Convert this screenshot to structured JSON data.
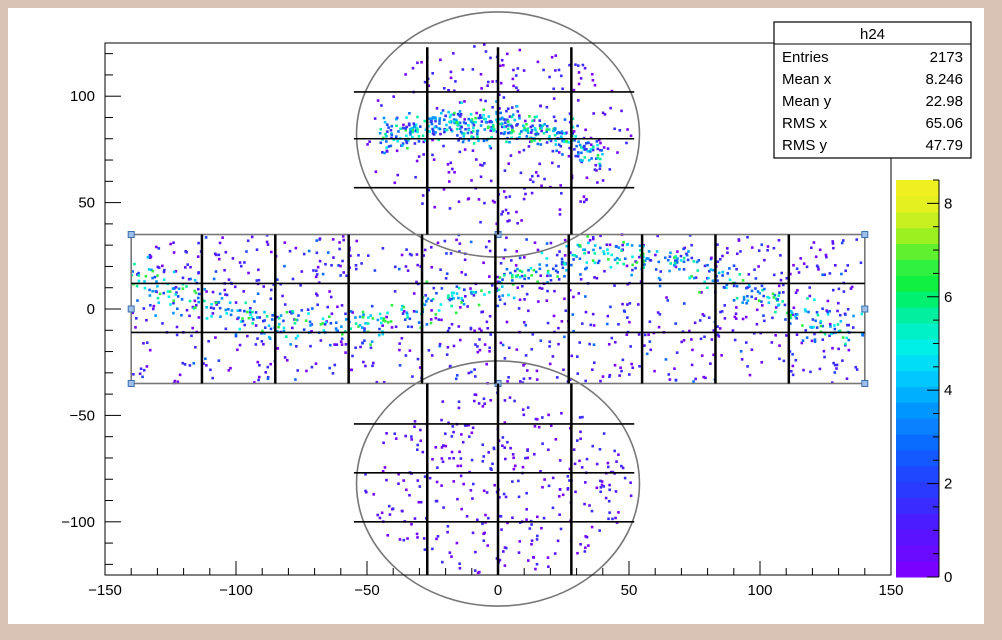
{
  "chart_data": {
    "type": "heatmap",
    "title": "",
    "xlabel": "",
    "ylabel": "",
    "xlim": [
      -150,
      150
    ],
    "ylim": [
      -125,
      125
    ],
    "xticks": [
      -150,
      -100,
      -50,
      0,
      50,
      100,
      150
    ],
    "yticks": [
      -100,
      -50,
      0,
      50,
      100
    ],
    "colorbar": {
      "min": 0,
      "max": 8.5,
      "ticks": [
        0,
        2,
        4,
        6,
        8
      ]
    },
    "stats_box": {
      "name": "h24",
      "rows": [
        {
          "label": "Entries",
          "value": "2173"
        },
        {
          "label": "Mean x",
          "value": "8.246"
        },
        {
          "label": "Mean y",
          "value": "22.98"
        },
        {
          "label": "RMS x",
          "value": "65.06"
        },
        {
          "label": "RMS y",
          "value": "47.79"
        }
      ]
    },
    "regions": {
      "barrel": {
        "x": [
          -140,
          140
        ],
        "y": [
          -35,
          35
        ]
      },
      "top_cap": {
        "cx": 0,
        "cy": 82,
        "r": 45
      },
      "bottom_cap": {
        "cx": 0,
        "cy": -82,
        "r": 45
      }
    },
    "grid_lines": {
      "barrel_vertical_x": [
        -113,
        -85,
        -57,
        -29,
        -1,
        27,
        55,
        83,
        111
      ],
      "barrel_horizontal_y": [
        -11,
        12
      ],
      "cap_vertical_x": [
        -27,
        0,
        28
      ],
      "top_cap_horizontal_y": [
        102,
        80,
        57
      ],
      "bottom_cap_horizontal_y": [
        -54,
        -77,
        -100
      ]
    }
  }
}
